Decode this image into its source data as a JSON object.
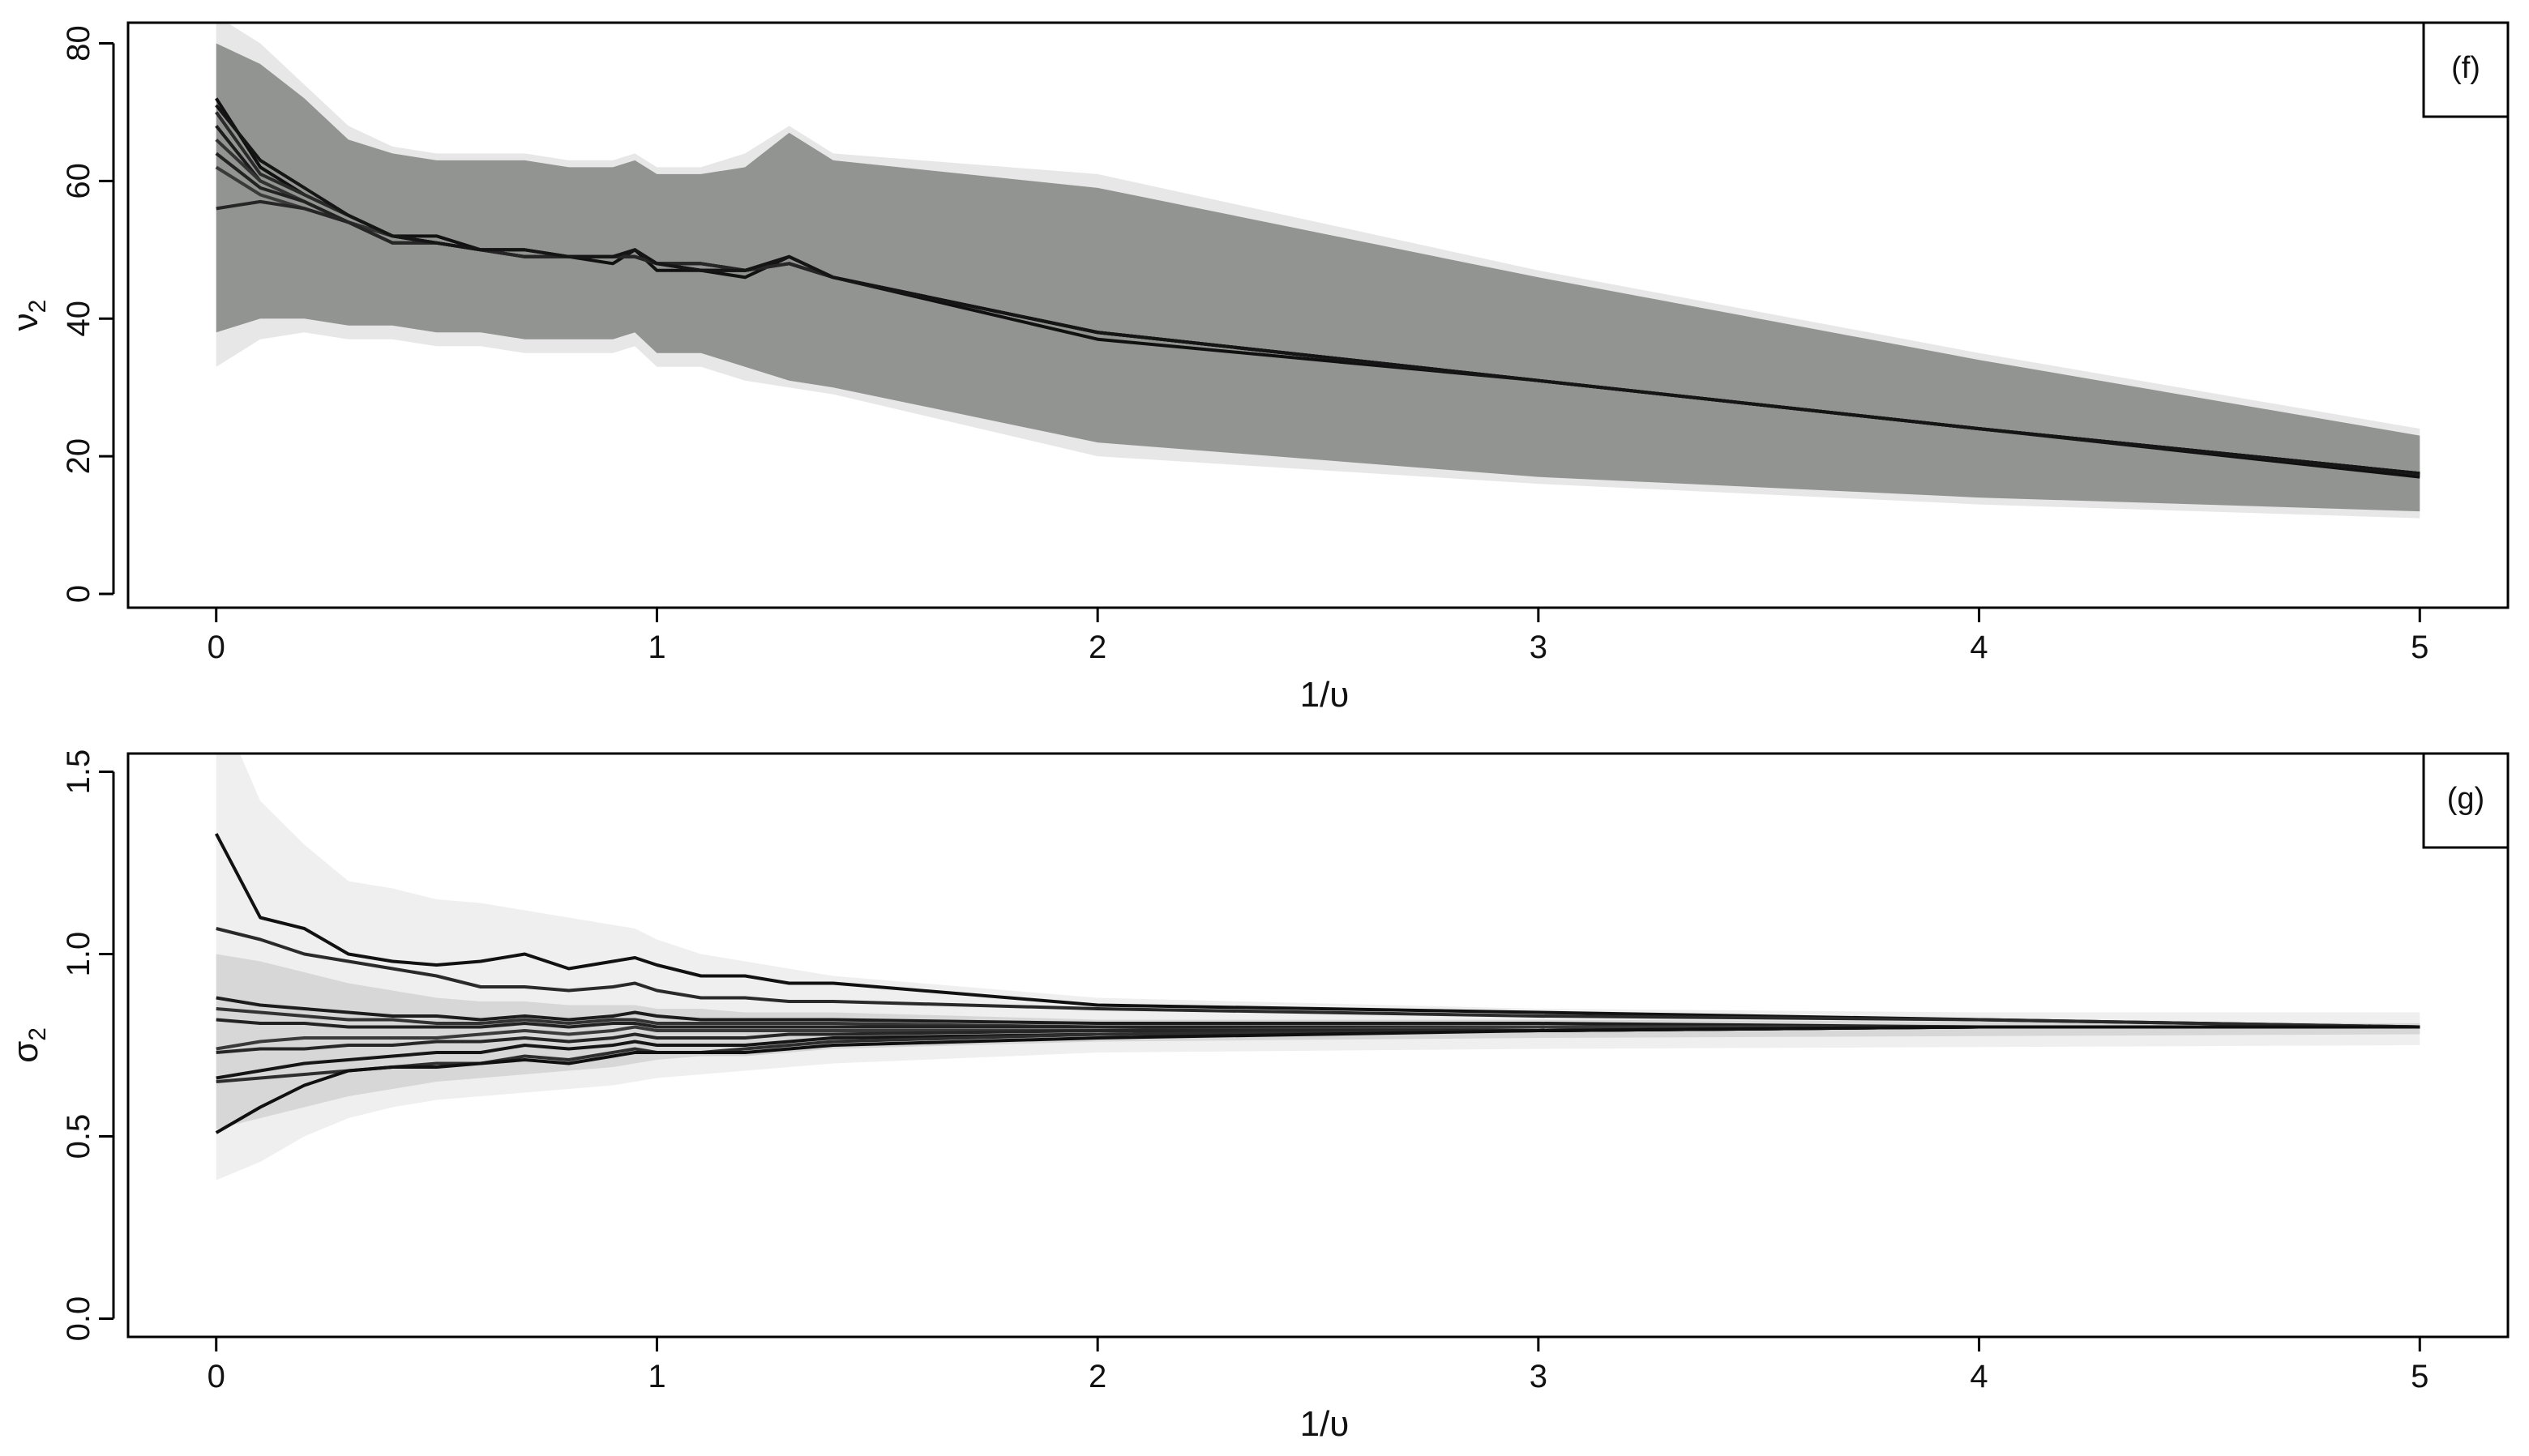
{
  "chart_data": [
    {
      "type": "line",
      "panel_label": "(f)",
      "xlabel": "1/υ",
      "ylabel": "ν",
      "ylabel_sub": "2",
      "xlim": [
        -0.2,
        5.2
      ],
      "ylim": [
        -2,
        83
      ],
      "xticks": [
        0,
        1,
        2,
        3,
        4,
        5
      ],
      "yticks": [
        0,
        20,
        40,
        60,
        80
      ],
      "x": [
        0,
        0.1,
        0.2,
        0.3,
        0.4,
        0.5,
        0.6,
        0.7,
        0.8,
        0.9,
        0.95,
        1.0,
        1.1,
        1.2,
        1.3,
        1.4,
        2,
        3,
        4,
        5
      ],
      "band_outer": {
        "lower": [
          33,
          37,
          38,
          37,
          37,
          36,
          36,
          35,
          35,
          35,
          36,
          33,
          33,
          31,
          30,
          29,
          20,
          16,
          13,
          11
        ],
        "upper": [
          84,
          80,
          74,
          68,
          65,
          64,
          64,
          64,
          63,
          63,
          64,
          62,
          62,
          64,
          68,
          64,
          61,
          47,
          35,
          24
        ]
      },
      "band_inner": {
        "lower": [
          38,
          40,
          40,
          39,
          39,
          38,
          38,
          37,
          37,
          37,
          38,
          35,
          35,
          33,
          31,
          30,
          22,
          17,
          14,
          12
        ],
        "upper": [
          80,
          77,
          72,
          66,
          64,
          63,
          63,
          63,
          62,
          62,
          63,
          61,
          61,
          62,
          67,
          63,
          59,
          46,
          34,
          23
        ]
      },
      "series": [
        {
          "values": [
            72,
            62,
            58,
            55,
            52,
            52,
            50,
            50,
            49,
            48,
            50,
            47,
            47,
            46,
            49,
            46,
            37,
            31,
            24,
            17
          ]
        },
        {
          "values": [
            70,
            61,
            58,
            55,
            52,
            51,
            50,
            50,
            49,
            49,
            50,
            48,
            47,
            47,
            49,
            46,
            38,
            31,
            24,
            17.5
          ]
        },
        {
          "values": [
            68,
            60,
            57,
            54,
            52,
            51,
            50,
            49,
            49,
            49,
            49,
            48,
            47,
            47,
            48,
            46,
            38,
            31,
            24,
            17.5
          ]
        },
        {
          "values": [
            66,
            60,
            57,
            54,
            52,
            51,
            50,
            49,
            49,
            49,
            49,
            48,
            48,
            47,
            48,
            46,
            38,
            31,
            24,
            17.5
          ]
        },
        {
          "values": [
            64,
            59,
            57,
            54,
            51,
            51,
            50,
            49,
            49,
            49,
            49,
            48,
            48,
            47,
            48,
            46,
            38,
            31,
            24,
            17.5
          ]
        },
        {
          "values": [
            62,
            58,
            56,
            54,
            51,
            51,
            50,
            49,
            49,
            49,
            49,
            48,
            48,
            47,
            48,
            46,
            38,
            31,
            24,
            17.5
          ]
        },
        {
          "values": [
            56,
            57,
            56,
            54,
            51,
            51,
            50,
            49,
            49,
            49,
            49,
            48,
            48,
            47,
            48,
            46,
            38,
            31,
            24,
            17.5
          ]
        },
        {
          "values": [
            71,
            63,
            59,
            55,
            52,
            51,
            50,
            50,
            49,
            49,
            50,
            48,
            47,
            47,
            49,
            46,
            38,
            31,
            24,
            17.5
          ]
        }
      ]
    },
    {
      "type": "line",
      "panel_label": "(g)",
      "xlabel": "1/υ",
      "ylabel": "σ",
      "ylabel_sub": "2",
      "xlim": [
        -0.2,
        5.2
      ],
      "ylim": [
        -0.05,
        1.55
      ],
      "xticks": [
        0,
        1,
        2,
        3,
        4,
        5
      ],
      "yticks": [
        0.0,
        0.5,
        1.0,
        1.5
      ],
      "ytick_labels": [
        "0.0",
        "0.5",
        "1.0",
        "1.5"
      ],
      "x": [
        0,
        0.1,
        0.2,
        0.3,
        0.4,
        0.5,
        0.6,
        0.7,
        0.8,
        0.9,
        0.95,
        1.0,
        1.1,
        1.2,
        1.3,
        1.4,
        2,
        3,
        4,
        5
      ],
      "band_outer": {
        "lower": [
          0.38,
          0.43,
          0.5,
          0.55,
          0.58,
          0.6,
          0.61,
          0.62,
          0.63,
          0.64,
          0.65,
          0.66,
          0.67,
          0.68,
          0.69,
          0.7,
          0.73,
          0.74,
          0.745,
          0.75
        ],
        "upper": [
          1.7,
          1.42,
          1.3,
          1.2,
          1.18,
          1.15,
          1.14,
          1.12,
          1.1,
          1.08,
          1.07,
          1.04,
          1.0,
          0.98,
          0.96,
          0.94,
          0.88,
          0.85,
          0.84,
          0.84
        ]
      },
      "band_inner": {
        "lower": [
          0.52,
          0.55,
          0.58,
          0.61,
          0.63,
          0.65,
          0.66,
          0.67,
          0.68,
          0.69,
          0.7,
          0.71,
          0.72,
          0.72,
          0.73,
          0.74,
          0.76,
          0.77,
          0.775,
          0.78
        ],
        "upper": [
          1.0,
          0.98,
          0.95,
          0.92,
          0.9,
          0.88,
          0.87,
          0.87,
          0.86,
          0.86,
          0.86,
          0.85,
          0.85,
          0.84,
          0.84,
          0.84,
          0.82,
          0.82,
          0.815,
          0.81
        ]
      },
      "series": [
        {
          "values": [
            1.33,
            1.1,
            1.07,
            1.0,
            0.98,
            0.97,
            0.98,
            1.0,
            0.96,
            0.98,
            0.99,
            0.97,
            0.94,
            0.94,
            0.92,
            0.92,
            0.86,
            0.84,
            0.82,
            0.8
          ]
        },
        {
          "values": [
            1.07,
            1.04,
            1.0,
            0.98,
            0.96,
            0.94,
            0.91,
            0.91,
            0.9,
            0.91,
            0.92,
            0.9,
            0.88,
            0.88,
            0.87,
            0.87,
            0.85,
            0.83,
            0.82,
            0.8
          ]
        },
        {
          "values": [
            0.88,
            0.86,
            0.85,
            0.84,
            0.83,
            0.83,
            0.82,
            0.83,
            0.82,
            0.83,
            0.84,
            0.83,
            0.82,
            0.82,
            0.82,
            0.82,
            0.81,
            0.81,
            0.8,
            0.8
          ]
        },
        {
          "values": [
            0.85,
            0.84,
            0.83,
            0.82,
            0.82,
            0.81,
            0.81,
            0.82,
            0.81,
            0.82,
            0.82,
            0.81,
            0.81,
            0.81,
            0.81,
            0.81,
            0.8,
            0.8,
            0.8,
            0.8
          ]
        },
        {
          "values": [
            0.82,
            0.81,
            0.81,
            0.8,
            0.8,
            0.8,
            0.8,
            0.81,
            0.8,
            0.81,
            0.81,
            0.8,
            0.8,
            0.8,
            0.8,
            0.8,
            0.8,
            0.8,
            0.8,
            0.8
          ]
        },
        {
          "values": [
            0.74,
            0.76,
            0.77,
            0.77,
            0.77,
            0.77,
            0.78,
            0.79,
            0.78,
            0.79,
            0.8,
            0.79,
            0.79,
            0.79,
            0.79,
            0.79,
            0.79,
            0.8,
            0.8,
            0.8
          ]
        },
        {
          "values": [
            0.73,
            0.74,
            0.74,
            0.75,
            0.75,
            0.76,
            0.76,
            0.77,
            0.76,
            0.77,
            0.78,
            0.77,
            0.77,
            0.77,
            0.78,
            0.78,
            0.79,
            0.79,
            0.8,
            0.8
          ]
        },
        {
          "values": [
            0.66,
            0.68,
            0.7,
            0.71,
            0.72,
            0.73,
            0.73,
            0.75,
            0.74,
            0.75,
            0.76,
            0.75,
            0.75,
            0.75,
            0.76,
            0.77,
            0.78,
            0.79,
            0.8,
            0.8
          ]
        },
        {
          "values": [
            0.65,
            0.66,
            0.67,
            0.68,
            0.69,
            0.7,
            0.7,
            0.72,
            0.71,
            0.73,
            0.74,
            0.73,
            0.73,
            0.74,
            0.75,
            0.76,
            0.78,
            0.79,
            0.8,
            0.8
          ]
        },
        {
          "values": [
            0.51,
            0.58,
            0.64,
            0.68,
            0.69,
            0.69,
            0.7,
            0.71,
            0.7,
            0.72,
            0.73,
            0.73,
            0.73,
            0.73,
            0.74,
            0.75,
            0.77,
            0.79,
            0.8,
            0.8
          ]
        }
      ]
    }
  ]
}
